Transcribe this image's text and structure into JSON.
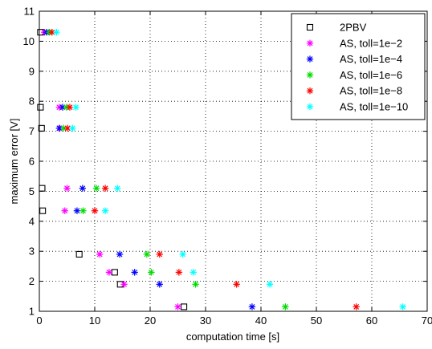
{
  "chart_data": {
    "type": "scatter",
    "xlabel": "computation time [s]",
    "ylabel": "maximum error [V]",
    "xlim": [
      0,
      70
    ],
    "ylim": [
      1,
      11
    ],
    "xticks": [
      "0",
      "10",
      "20",
      "30",
      "40",
      "50",
      "60",
      "70"
    ],
    "yticks": [
      "1",
      "2",
      "3",
      "4",
      "5",
      "6",
      "7",
      "8",
      "9",
      "10",
      "11"
    ],
    "grid": true,
    "legend_position": "top-right",
    "series": [
      {
        "name": "2PBV",
        "marker": "square",
        "color": "#000000",
        "points": [
          [
            0.2,
            10.3
          ],
          [
            0.2,
            7.8
          ],
          [
            0.4,
            7.1
          ],
          [
            0.5,
            5.1
          ],
          [
            0.6,
            4.35
          ],
          [
            7.2,
            2.9
          ],
          [
            13.6,
            2.3
          ],
          [
            14.6,
            1.9
          ],
          [
            26.1,
            1.15
          ]
        ]
      },
      {
        "name": "AS, toll=1e−2",
        "marker": "asterisk",
        "color": "#ff00ff",
        "points": [
          [
            0.9,
            10.3
          ],
          [
            3.6,
            7.8
          ],
          [
            3.7,
            7.1
          ],
          [
            5.0,
            5.1
          ],
          [
            4.6,
            4.35
          ],
          [
            10.9,
            2.9
          ],
          [
            12.6,
            2.3
          ],
          [
            15.3,
            1.9
          ],
          [
            25.0,
            1.15
          ]
        ]
      },
      {
        "name": "AS, toll=1e−4",
        "marker": "asterisk",
        "color": "#0000ff",
        "points": [
          [
            1.3,
            10.3
          ],
          [
            4.2,
            7.8
          ],
          [
            3.6,
            7.1
          ],
          [
            7.8,
            5.1
          ],
          [
            6.8,
            4.35
          ],
          [
            14.5,
            2.9
          ],
          [
            17.2,
            2.3
          ],
          [
            21.7,
            1.9
          ],
          [
            38.4,
            1.15
          ]
        ]
      },
      {
        "name": "AS, toll=1e−6",
        "marker": "asterisk",
        "color": "#00dd00",
        "points": [
          [
            1.8,
            10.3
          ],
          [
            4.9,
            7.8
          ],
          [
            4.4,
            7.1
          ],
          [
            10.3,
            5.1
          ],
          [
            7.9,
            4.35
          ],
          [
            19.4,
            2.9
          ],
          [
            20.2,
            2.3
          ],
          [
            28.2,
            1.9
          ],
          [
            44.4,
            1.15
          ]
        ]
      },
      {
        "name": "AS, toll=1e−8",
        "marker": "asterisk",
        "color": "#ff0000",
        "points": [
          [
            2.3,
            10.3
          ],
          [
            5.5,
            7.8
          ],
          [
            5.1,
            7.1
          ],
          [
            11.9,
            5.1
          ],
          [
            10.0,
            4.35
          ],
          [
            21.7,
            2.9
          ],
          [
            25.2,
            2.3
          ],
          [
            35.6,
            1.9
          ],
          [
            57.2,
            1.15
          ]
        ]
      },
      {
        "name": "AS, toll=1e−10",
        "marker": "asterisk",
        "color": "#00ffff",
        "points": [
          [
            3.1,
            10.3
          ],
          [
            6.6,
            7.8
          ],
          [
            6.0,
            7.1
          ],
          [
            14.1,
            5.1
          ],
          [
            11.9,
            4.35
          ],
          [
            25.9,
            2.9
          ],
          [
            27.8,
            2.3
          ],
          [
            41.6,
            1.9
          ],
          [
            65.6,
            1.15
          ]
        ]
      }
    ]
  }
}
